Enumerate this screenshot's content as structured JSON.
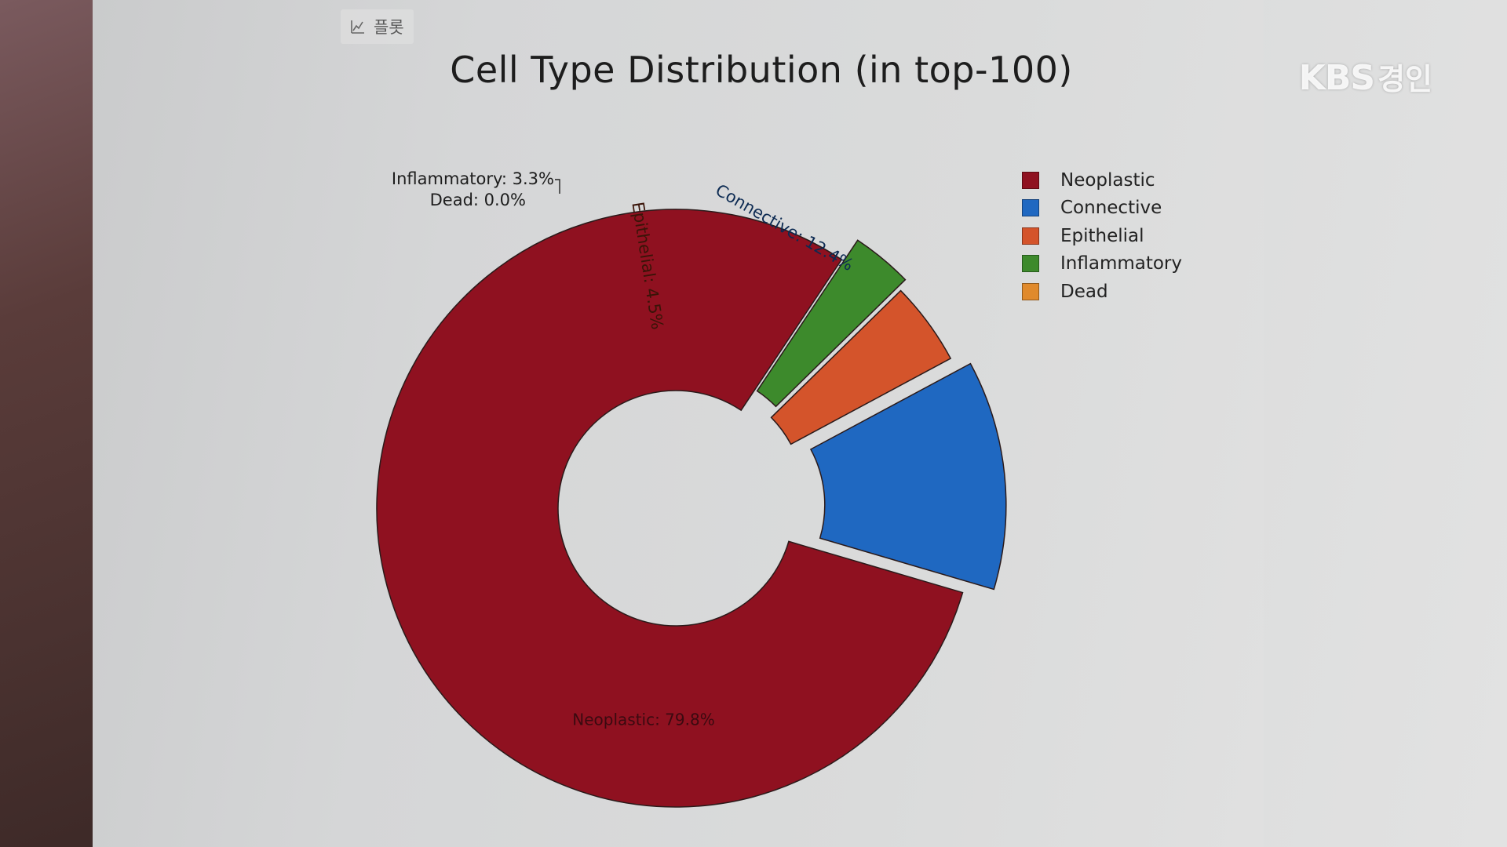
{
  "toolbar": {
    "label": "플롯",
    "icon": "plot-icon"
  },
  "watermark": {
    "brand": "KBS",
    "region": "경인"
  },
  "chart_data": {
    "type": "pie",
    "hole": true,
    "title": "Cell Type Distribution (in top-100)",
    "categories": [
      "Neoplastic",
      "Connective",
      "Epithelial",
      "Inflammatory",
      "Dead"
    ],
    "values": [
      79.8,
      12.4,
      4.5,
      3.3,
      0.0
    ],
    "colors": [
      "#8f1120",
      "#1f68c1",
      "#d4542b",
      "#3d8a2c",
      "#e08a2c"
    ],
    "slice_labels": [
      "Neoplastic: 79.8%",
      "Connective: 12.4%",
      "Epithelial: 4.5%",
      "Inflammatory: 3.3%",
      "Dead: 0.0%"
    ],
    "legend_placement": "top-right",
    "legend": [
      "Neoplastic",
      "Connective",
      "Epithelial",
      "Inflammatory",
      "Dead"
    ]
  }
}
